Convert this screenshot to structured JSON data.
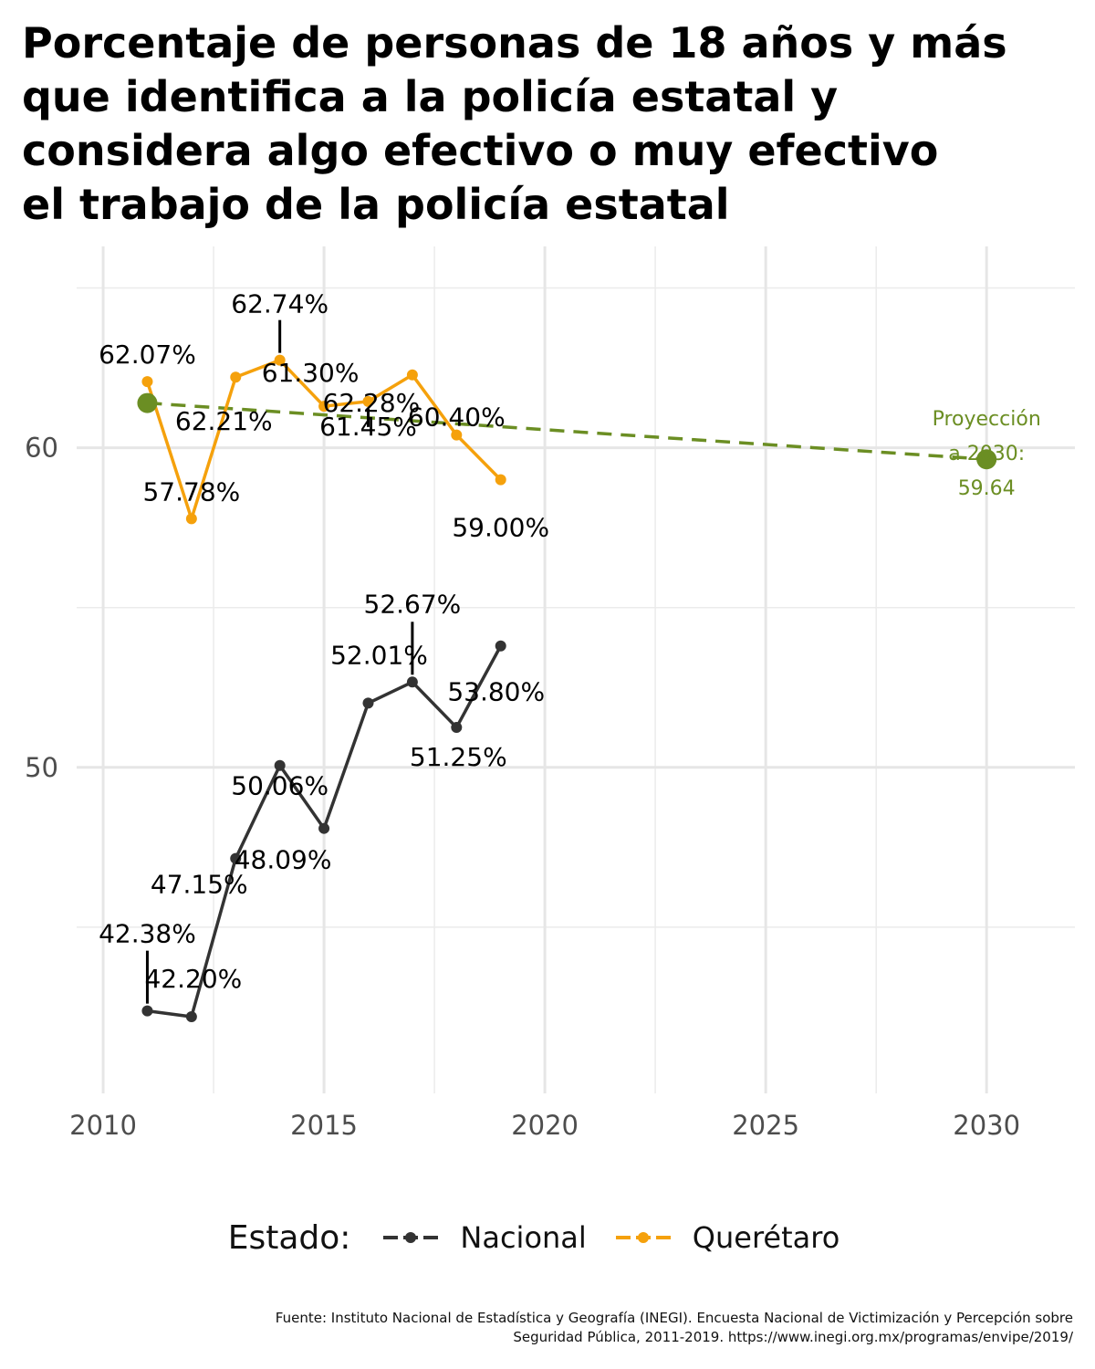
{
  "title_lines": [
    "Porcentaje de personas de 18 años y más",
    "que identifica a la policía estatal y",
    "considera algo efectivo o muy efectivo",
    "el trabajo de la policía estatal"
  ],
  "chart_data": {
    "type": "line",
    "xlim": [
      2009.4,
      2032.0
    ],
    "ylim": [
      39.8,
      66.3
    ],
    "x_ticks": [
      2010,
      2015,
      2020,
      2025,
      2030
    ],
    "y_ticks": [
      50,
      60
    ],
    "grid": true,
    "series": [
      {
        "name": "Nacional",
        "color": "#333333",
        "x": [
          2011,
          2012,
          2013,
          2014,
          2015,
          2016,
          2017,
          2018,
          2019
        ],
        "values": [
          42.38,
          42.2,
          47.15,
          50.06,
          48.09,
          52.01,
          52.67,
          51.25,
          53.8
        ],
        "labels": [
          "42.38%",
          "42.20%",
          "47.15%",
          "50.06%",
          "48.09%",
          "52.01%",
          "52.67%",
          "51.25%",
          "53.80%"
        ]
      },
      {
        "name": "Querétaro",
        "color": "#F5A10C",
        "x": [
          2011,
          2012,
          2013,
          2014,
          2015,
          2016,
          2017,
          2018,
          2019
        ],
        "values": [
          62.07,
          57.78,
          62.21,
          62.74,
          61.3,
          61.45,
          62.28,
          60.4,
          59.0
        ],
        "labels": [
          "62.07%",
          "57.78%",
          "62.21%",
          "62.74%",
          "61.30%",
          "61.45%",
          "62.28%",
          "60.40%",
          "59.00%"
        ]
      }
    ],
    "projection": {
      "color": "#6B8E23",
      "x": [
        2011,
        2030
      ],
      "values": [
        61.4,
        59.64
      ],
      "annotation_lines": [
        "Proyección",
        "a 2030:",
        "59.64"
      ]
    },
    "legend": {
      "position": "bottom",
      "title": "Estado:",
      "entries": [
        "Nacional",
        "Querétaro"
      ]
    }
  },
  "caption_lines": [
    "Fuente: Instituto Nacional de Estadística y Geografía (INEGI). Encuesta Nacional de Victimización y Percepción sobre",
    "Seguridad Pública, 2011-2019. https://www.inegi.org.mx/programas/envipe/2019/"
  ]
}
